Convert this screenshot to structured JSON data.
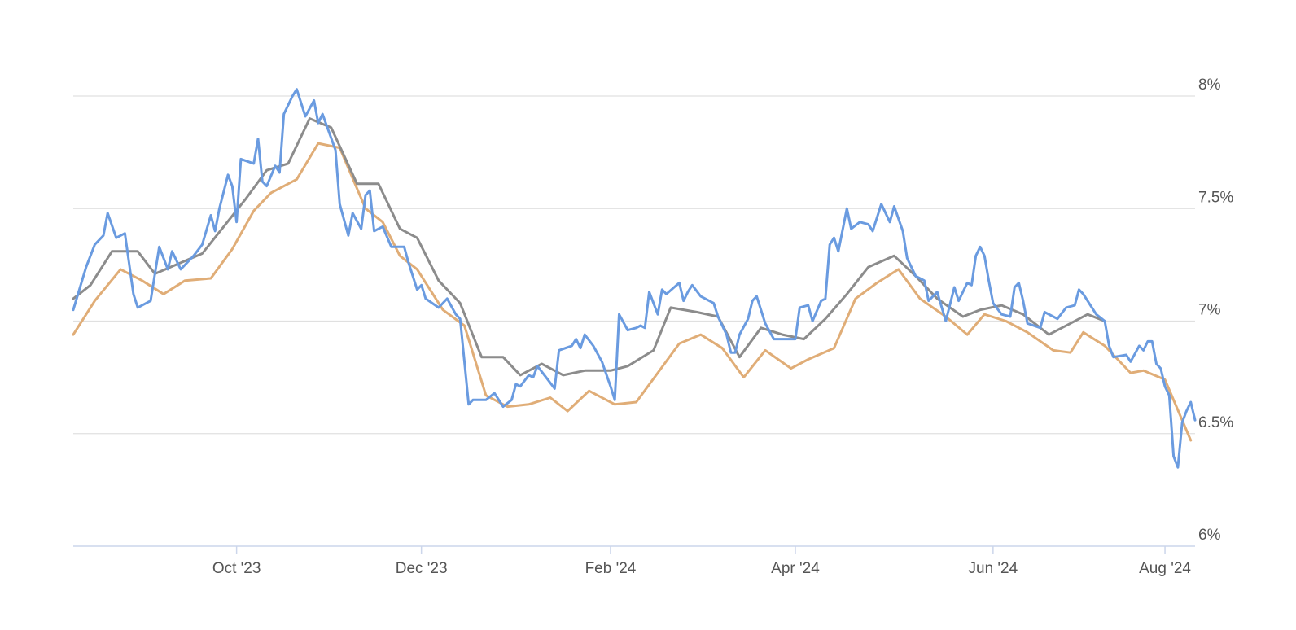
{
  "chart_data": {
    "type": "line",
    "xlim": [
      0,
      261
    ],
    "ylim": [
      6,
      8.2
    ],
    "xticks": [
      {
        "value": 38,
        "label": "Oct '23"
      },
      {
        "value": 81,
        "label": "Dec '23"
      },
      {
        "value": 125,
        "label": "Feb '24"
      },
      {
        "value": 168,
        "label": "Apr '24"
      },
      {
        "value": 214,
        "label": "Jun '24"
      },
      {
        "value": 254,
        "label": "Aug '24"
      }
    ],
    "yticks": [
      {
        "value": 6,
        "label": "6%"
      },
      {
        "value": 6.5,
        "label": "6.5%"
      },
      {
        "value": 7,
        "label": "7%"
      },
      {
        "value": 7.5,
        "label": "7.5%"
      },
      {
        "value": 8,
        "label": "8%"
      }
    ],
    "grid": true,
    "series": [
      {
        "color": "#6a9be0",
        "x": [
          0,
          3,
          5,
          7,
          8,
          10,
          12,
          14,
          15,
          18,
          20,
          22,
          23,
          25,
          28,
          30,
          32,
          33,
          34,
          36,
          37,
          38,
          39,
          42,
          43,
          44,
          45,
          47,
          48,
          49,
          51,
          52,
          54,
          56,
          57,
          58,
          61,
          62,
          64,
          65,
          67,
          68,
          69,
          70,
          72,
          74,
          77,
          78,
          80,
          81,
          82,
          85,
          87,
          89,
          90,
          91,
          92,
          93,
          96,
          98,
          100,
          102,
          103,
          104,
          106,
          107,
          108,
          110,
          112,
          113,
          116,
          117,
          118,
          119,
          121,
          123,
          125,
          126,
          127,
          129,
          131,
          132,
          133,
          134,
          136,
          137,
          138,
          141,
          142,
          143,
          144,
          146,
          149,
          150,
          152,
          153,
          154,
          155,
          157,
          158,
          159,
          161,
          163,
          165,
          168,
          169,
          171,
          172,
          174,
          175,
          176,
          177,
          178,
          180,
          181,
          183,
          185,
          186,
          188,
          190,
          191,
          193,
          194,
          196,
          198,
          199,
          201,
          203,
          205,
          206,
          208,
          209,
          210,
          211,
          212,
          213,
          214,
          216,
          218,
          219,
          220,
          221,
          222,
          225,
          226,
          228,
          229,
          231,
          233,
          234,
          235,
          238,
          240,
          241,
          242,
          245,
          246,
          248,
          249,
          250,
          251,
          252,
          253,
          254,
          255,
          256,
          257,
          258,
          259,
          260,
          261
        ],
        "values": [
          7.05,
          7.24,
          7.34,
          7.38,
          7.48,
          7.37,
          7.39,
          7.12,
          7.06,
          7.09,
          7.33,
          7.23,
          7.31,
          7.23,
          7.29,
          7.34,
          7.47,
          7.4,
          7.5,
          7.65,
          7.6,
          7.44,
          7.72,
          7.7,
          7.81,
          7.62,
          7.6,
          7.69,
          7.66,
          7.92,
          8.0,
          8.03,
          7.91,
          7.98,
          7.88,
          7.92,
          7.76,
          7.52,
          7.38,
          7.48,
          7.41,
          7.56,
          7.58,
          7.4,
          7.42,
          7.33,
          7.33,
          7.26,
          7.14,
          7.16,
          7.1,
          7.06,
          7.1,
          7.03,
          7.01,
          6.82,
          6.63,
          6.65,
          6.65,
          6.68,
          6.62,
          6.65,
          6.72,
          6.71,
          6.76,
          6.75,
          6.8,
          6.75,
          6.7,
          6.87,
          6.89,
          6.92,
          6.88,
          6.94,
          6.89,
          6.82,
          6.71,
          6.65,
          7.03,
          6.96,
          6.97,
          6.98,
          6.97,
          7.13,
          7.03,
          7.14,
          7.12,
          7.17,
          7.09,
          7.13,
          7.16,
          7.11,
          7.08,
          7.02,
          6.94,
          6.86,
          6.86,
          6.94,
          7.01,
          7.09,
          7.11,
          6.99,
          6.92,
          6.92,
          6.92,
          7.06,
          7.07,
          7.0,
          7.09,
          7.1,
          7.34,
          7.37,
          7.31,
          7.5,
          7.41,
          7.44,
          7.43,
          7.4,
          7.52,
          7.44,
          7.51,
          7.4,
          7.28,
          7.2,
          7.18,
          7.09,
          7.13,
          7.0,
          7.15,
          7.09,
          7.17,
          7.16,
          7.29,
          7.33,
          7.29,
          7.18,
          7.08,
          7.03,
          7.02,
          7.15,
          7.17,
          7.09,
          6.99,
          6.97,
          7.04,
          7.02,
          7.01,
          7.06,
          7.07,
          7.14,
          7.12,
          7.03,
          7.0,
          6.89,
          6.84,
          6.85,
          6.82,
          6.89,
          6.87,
          6.91,
          6.91,
          6.81,
          6.79,
          6.71,
          6.67,
          6.4,
          6.35,
          6.55,
          6.6,
          6.64,
          6.56
        ]
      },
      {
        "color": "#8c8c8c",
        "x": [
          0,
          4,
          9,
          15,
          19,
          30,
          35,
          40,
          45,
          50,
          55,
          60,
          66,
          71,
          76,
          80,
          85,
          90,
          95,
          100,
          104,
          109,
          114,
          119,
          125,
          129,
          135,
          139,
          145,
          150,
          155,
          160,
          165,
          170,
          175,
          180,
          185,
          191,
          196,
          201,
          207,
          211,
          216,
          221,
          227,
          232,
          236,
          240
        ],
        "values": [
          7.1,
          7.16,
          7.31,
          7.31,
          7.21,
          7.3,
          7.42,
          7.54,
          7.67,
          7.7,
          7.9,
          7.86,
          7.61,
          7.61,
          7.41,
          7.37,
          7.18,
          7.08,
          6.84,
          6.84,
          6.76,
          6.81,
          6.76,
          6.78,
          6.78,
          6.8,
          6.87,
          7.06,
          7.04,
          7.02,
          6.84,
          6.97,
          6.94,
          6.92,
          7.01,
          7.12,
          7.24,
          7.29,
          7.2,
          7.1,
          7.02,
          7.05,
          7.07,
          7.03,
          6.94,
          6.99,
          7.03,
          7.0
        ]
      },
      {
        "color": "#e0ad77",
        "x": [
          0,
          5,
          11,
          16,
          21,
          26,
          32,
          37,
          42,
          46,
          52,
          57,
          62,
          68,
          72,
          76,
          80,
          86,
          91,
          96,
          101,
          106,
          111,
          115,
          120,
          126,
          131,
          136,
          141,
          146,
          151,
          156,
          161,
          167,
          171,
          177,
          182,
          187,
          192,
          197,
          203,
          208,
          212,
          217,
          222,
          228,
          232,
          235,
          240,
          246,
          249,
          254,
          260
        ],
        "values": [
          6.94,
          7.09,
          7.23,
          7.18,
          7.12,
          7.18,
          7.19,
          7.32,
          7.49,
          7.57,
          7.63,
          7.79,
          7.77,
          7.5,
          7.44,
          7.29,
          7.23,
          7.05,
          6.98,
          6.67,
          6.62,
          6.63,
          6.66,
          6.6,
          6.69,
          6.63,
          6.64,
          6.77,
          6.9,
          6.94,
          6.88,
          6.75,
          6.87,
          6.79,
          6.83,
          6.88,
          7.1,
          7.17,
          7.23,
          7.1,
          7.02,
          6.94,
          7.03,
          7.0,
          6.95,
          6.87,
          6.86,
          6.95,
          6.89,
          6.77,
          6.78,
          6.74,
          6.47
        ]
      }
    ]
  }
}
